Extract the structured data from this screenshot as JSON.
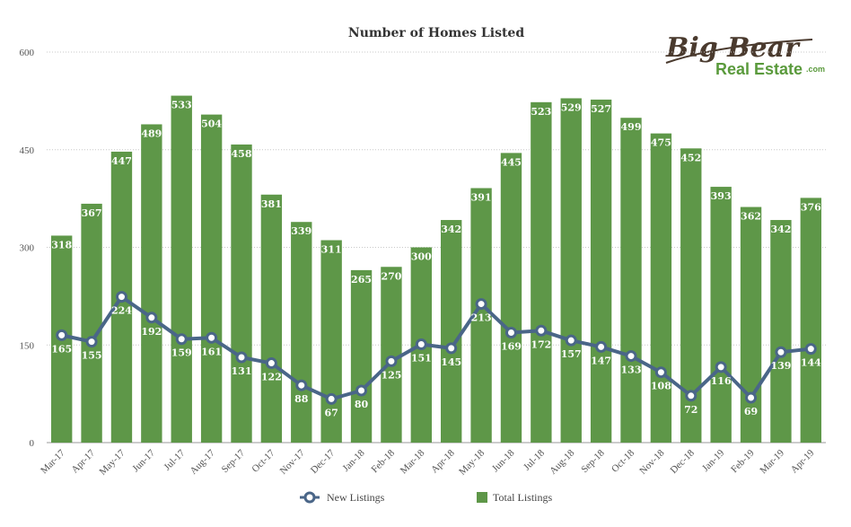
{
  "chart_data": {
    "type": "bar",
    "title": "Number of Homes Listed",
    "categories": [
      "Mar-17",
      "Apr-17",
      "May-17",
      "Jun-17",
      "Jul-17",
      "Aug-17",
      "Sep-17",
      "Oct-17",
      "Nov-17",
      "Dec-17",
      "Jan-18",
      "Feb-18",
      "Mar-18",
      "Apr-18",
      "May-18",
      "Jun-18",
      "Jul-18",
      "Aug-18",
      "Sep-18",
      "Oct-18",
      "Nov-18",
      "Dec-18",
      "Jan-19",
      "Feb-19",
      "Mar-19",
      "Apr-19"
    ],
    "ylim": [
      0,
      600
    ],
    "yticks": [
      0,
      150,
      300,
      450,
      600
    ],
    "grid": true,
    "legend_position": "bottom",
    "series": [
      {
        "name": "Total Listings",
        "type": "bar",
        "color": "#5e9748",
        "values": [
          318,
          367,
          447,
          489,
          533,
          504,
          458,
          381,
          339,
          311,
          265,
          270,
          300,
          342,
          391,
          445,
          523,
          529,
          527,
          499,
          475,
          452,
          393,
          362,
          342,
          376
        ]
      },
      {
        "name": "New Listings",
        "type": "line",
        "color": "#4a6688",
        "values": [
          165,
          155,
          224,
          192,
          159,
          161,
          131,
          122,
          88,
          67,
          80,
          125,
          151,
          145,
          213,
          169,
          172,
          157,
          147,
          133,
          108,
          72,
          116,
          69,
          139,
          144
        ]
      }
    ]
  },
  "logo": {
    "line1": "Big Bear",
    "line2": "Real Estate",
    "line3": ".com"
  }
}
